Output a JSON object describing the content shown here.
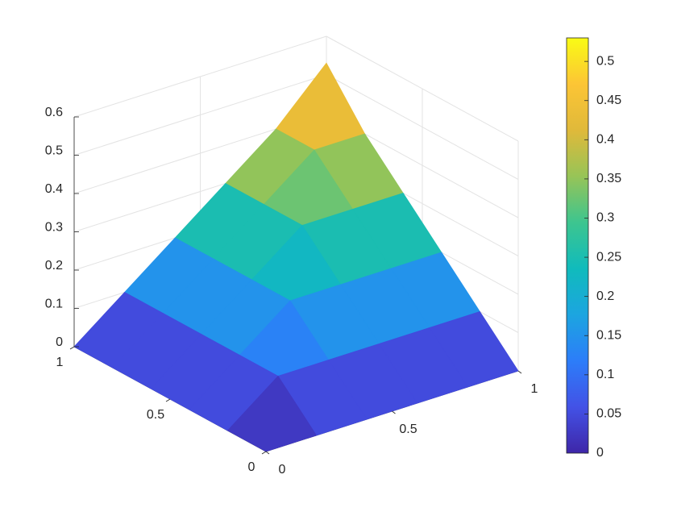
{
  "chart_data": {
    "type": "surface",
    "x": [
      0,
      0.2,
      0.4,
      0.6,
      0.8,
      1
    ],
    "y": [
      0,
      0.2,
      0.4,
      0.6,
      0.8,
      1
    ],
    "z": [
      [
        0,
        0,
        0,
        0,
        0,
        0
      ],
      [
        0,
        0.1,
        0.1,
        0.1,
        0.1,
        0.1
      ],
      [
        0,
        0.1,
        0.2,
        0.2,
        0.2,
        0.2
      ],
      [
        0,
        0.1,
        0.2,
        0.3,
        0.3,
        0.3
      ],
      [
        0,
        0.1,
        0.2,
        0.3,
        0.4,
        0.4
      ],
      [
        0,
        0.1,
        0.2,
        0.3,
        0.4,
        0.53
      ]
    ],
    "xlim": [
      0,
      1
    ],
    "ylim": [
      0,
      1
    ],
    "zlim": [
      0,
      0.6
    ],
    "xticks": [
      0,
      0.5,
      1
    ],
    "yticks": [
      0,
      0.5,
      1
    ],
    "zticks": [
      0,
      0.1,
      0.2,
      0.3,
      0.4,
      0.5,
      0.6
    ],
    "clim": [
      0,
      0.53
    ],
    "colorbar_ticks": [
      0,
      0.05,
      0.1,
      0.15,
      0.2,
      0.25,
      0.3,
      0.35,
      0.4,
      0.45,
      0.5
    ],
    "colormap": [
      "#3e26a8",
      "#4352e6",
      "#2c7df9",
      "#1ca5e0",
      "#10bbbc",
      "#3dc58f",
      "#97c457",
      "#e0b93a",
      "#fcc535",
      "#f9fb15"
    ],
    "grid": true
  }
}
